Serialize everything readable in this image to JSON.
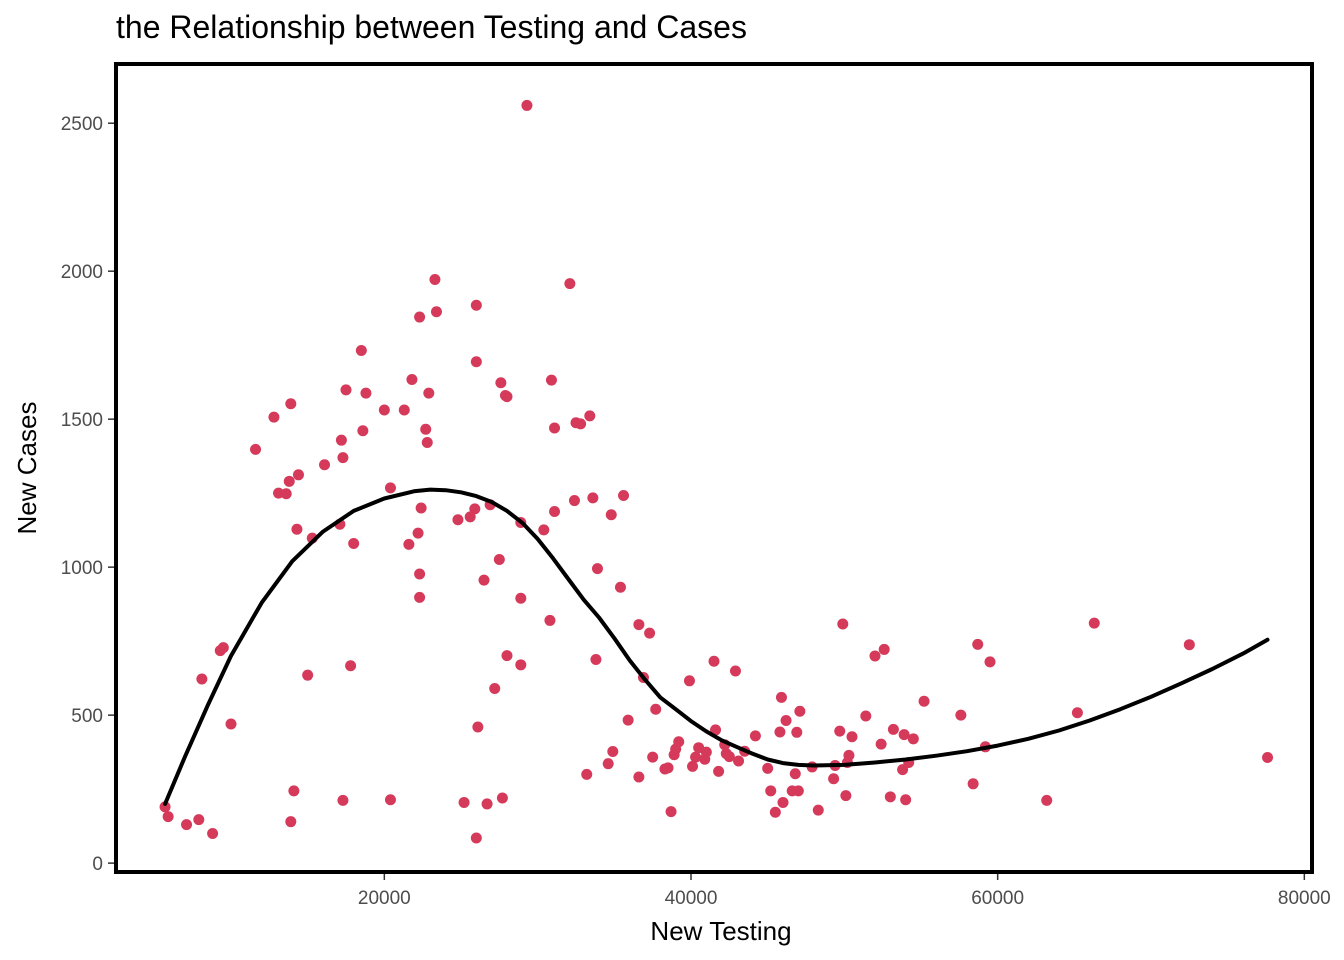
{
  "chart_data": {
    "type": "scatter",
    "title": "the Relationship between Testing and Cases",
    "xlabel": "New Testing",
    "ylabel": "New Cases",
    "xlim": [
      2500,
      80500
    ],
    "ylim": [
      -30,
      2700
    ],
    "x_ticks": [
      20000,
      40000,
      60000,
      80000
    ],
    "y_ticks": [
      0,
      500,
      1000,
      1500,
      2000,
      2500
    ],
    "grid": false,
    "legend": "none",
    "point_color": "#D53A5B",
    "line_color": "#000000",
    "points": [
      [
        5700,
        190
      ],
      [
        5900,
        157
      ],
      [
        7100,
        130
      ],
      [
        7900,
        147
      ],
      [
        8100,
        622
      ],
      [
        8800,
        100
      ],
      [
        9300,
        718
      ],
      [
        9500,
        728
      ],
      [
        10000,
        470
      ],
      [
        11600,
        1398
      ],
      [
        12800,
        1507
      ],
      [
        13100,
        1250
      ],
      [
        13600,
        1248
      ],
      [
        13800,
        1290
      ],
      [
        13900,
        1552
      ],
      [
        13900,
        140
      ],
      [
        14100,
        244
      ],
      [
        14300,
        1128
      ],
      [
        14400,
        1312
      ],
      [
        15000,
        635
      ],
      [
        15300,
        1098
      ],
      [
        16100,
        1346
      ],
      [
        17100,
        1145
      ],
      [
        17200,
        1429
      ],
      [
        17300,
        1370
      ],
      [
        17500,
        1599
      ],
      [
        17300,
        212
      ],
      [
        17800,
        667
      ],
      [
        18000,
        1080
      ],
      [
        18500,
        1732
      ],
      [
        18600,
        1461
      ],
      [
        18800,
        1588
      ],
      [
        20000,
        1531
      ],
      [
        20400,
        1268
      ],
      [
        20400,
        214
      ],
      [
        21300,
        1531
      ],
      [
        21600,
        1077
      ],
      [
        21800,
        1634
      ],
      [
        22200,
        1115
      ],
      [
        22300,
        1845
      ],
      [
        22300,
        977
      ],
      [
        22300,
        898
      ],
      [
        22400,
        1200
      ],
      [
        22700,
        1466
      ],
      [
        22800,
        1421
      ],
      [
        22900,
        1588
      ],
      [
        23300,
        1972
      ],
      [
        23400,
        1863
      ],
      [
        24800,
        1160
      ],
      [
        25200,
        205
      ],
      [
        25600,
        1170
      ],
      [
        25900,
        1197
      ],
      [
        26000,
        1885
      ],
      [
        26000,
        1694
      ],
      [
        26100,
        460
      ],
      [
        26000,
        85
      ],
      [
        26500,
        956
      ],
      [
        26700,
        200
      ],
      [
        26900,
        1211
      ],
      [
        27200,
        590
      ],
      [
        27500,
        1026
      ],
      [
        27600,
        1623
      ],
      [
        27700,
        220
      ],
      [
        27900,
        1580
      ],
      [
        28000,
        701
      ],
      [
        28000,
        1576
      ],
      [
        28900,
        1151
      ],
      [
        28900,
        895
      ],
      [
        28900,
        670
      ],
      [
        29300,
        2560
      ],
      [
        30400,
        1126
      ],
      [
        30800,
        820
      ],
      [
        30900,
        1632
      ],
      [
        31100,
        1470
      ],
      [
        31100,
        1188
      ],
      [
        32100,
        1958
      ],
      [
        32400,
        1225
      ],
      [
        32500,
        1488
      ],
      [
        32800,
        1484
      ],
      [
        33200,
        300
      ],
      [
        33400,
        1511
      ],
      [
        33600,
        1234
      ],
      [
        33800,
        688
      ],
      [
        33900,
        995
      ],
      [
        34600,
        336
      ],
      [
        34800,
        1177
      ],
      [
        34900,
        377
      ],
      [
        35400,
        932
      ],
      [
        35600,
        1242
      ],
      [
        35900,
        483
      ],
      [
        36600,
        806
      ],
      [
        36600,
        291
      ],
      [
        36900,
        627
      ],
      [
        37300,
        777
      ],
      [
        37500,
        358
      ],
      [
        37700,
        520
      ],
      [
        38300,
        318
      ],
      [
        38500,
        322
      ],
      [
        38700,
        174
      ],
      [
        38900,
        366
      ],
      [
        39000,
        385
      ],
      [
        39200,
        410
      ],
      [
        39900,
        616
      ],
      [
        40100,
        327
      ],
      [
        40300,
        358
      ],
      [
        40500,
        390
      ],
      [
        40900,
        351
      ],
      [
        41000,
        375
      ],
      [
        41500,
        682
      ],
      [
        41600,
        450
      ],
      [
        41800,
        310
      ],
      [
        42200,
        400
      ],
      [
        42300,
        370
      ],
      [
        42500,
        360
      ],
      [
        42900,
        649
      ],
      [
        43100,
        345
      ],
      [
        43500,
        378
      ],
      [
        44200,
        430
      ],
      [
        45000,
        320
      ],
      [
        45200,
        244
      ],
      [
        45500,
        172
      ],
      [
        45800,
        443
      ],
      [
        45900,
        560
      ],
      [
        46000,
        205
      ],
      [
        46200,
        482
      ],
      [
        46600,
        244
      ],
      [
        46800,
        302
      ],
      [
        46900,
        442
      ],
      [
        47000,
        244
      ],
      [
        47100,
        513
      ],
      [
        47900,
        325
      ],
      [
        48300,
        179
      ],
      [
        49300,
        285
      ],
      [
        49400,
        330
      ],
      [
        49700,
        446
      ],
      [
        49900,
        808
      ],
      [
        50100,
        228
      ],
      [
        50200,
        340
      ],
      [
        50300,
        364
      ],
      [
        50500,
        427
      ],
      [
        51400,
        497
      ],
      [
        52000,
        700
      ],
      [
        52400,
        402
      ],
      [
        52600,
        722
      ],
      [
        53000,
        224
      ],
      [
        53200,
        452
      ],
      [
        53900,
        434
      ],
      [
        53800,
        316
      ],
      [
        54000,
        214
      ],
      [
        54200,
        340
      ],
      [
        54500,
        420
      ],
      [
        55200,
        547
      ],
      [
        57600,
        500
      ],
      [
        58400,
        268
      ],
      [
        58700,
        739
      ],
      [
        59200,
        393
      ],
      [
        59500,
        680
      ],
      [
        63200,
        212
      ],
      [
        65200,
        508
      ],
      [
        66300,
        811
      ],
      [
        72500,
        738
      ],
      [
        77600,
        357
      ]
    ],
    "smooth_line": [
      [
        5700,
        200
      ],
      [
        7000,
        360
      ],
      [
        8500,
        535
      ],
      [
        10000,
        700
      ],
      [
        12000,
        880
      ],
      [
        14000,
        1020
      ],
      [
        16000,
        1120
      ],
      [
        18000,
        1190
      ],
      [
        20000,
        1232
      ],
      [
        22000,
        1257
      ],
      [
        23000,
        1262
      ],
      [
        24000,
        1260
      ],
      [
        25000,
        1253
      ],
      [
        26000,
        1240
      ],
      [
        27000,
        1220
      ],
      [
        28000,
        1190
      ],
      [
        29000,
        1150
      ],
      [
        30000,
        1095
      ],
      [
        31000,
        1030
      ],
      [
        32000,
        960
      ],
      [
        33000,
        890
      ],
      [
        34000,
        830
      ],
      [
        35000,
        760
      ],
      [
        36000,
        685
      ],
      [
        37000,
        620
      ],
      [
        38000,
        560
      ],
      [
        39000,
        520
      ],
      [
        40000,
        480
      ],
      [
        41000,
        445
      ],
      [
        42000,
        415
      ],
      [
        43000,
        392
      ],
      [
        44000,
        370
      ],
      [
        45000,
        350
      ],
      [
        46000,
        338
      ],
      [
        47000,
        332
      ],
      [
        48000,
        330
      ],
      [
        50000,
        332
      ],
      [
        52000,
        340
      ],
      [
        54000,
        350
      ],
      [
        56000,
        363
      ],
      [
        58000,
        378
      ],
      [
        60000,
        397
      ],
      [
        62000,
        420
      ],
      [
        64000,
        448
      ],
      [
        66000,
        482
      ],
      [
        68000,
        520
      ],
      [
        70000,
        562
      ],
      [
        72000,
        608
      ],
      [
        74000,
        656
      ],
      [
        76000,
        708
      ],
      [
        77600,
        755
      ]
    ]
  }
}
